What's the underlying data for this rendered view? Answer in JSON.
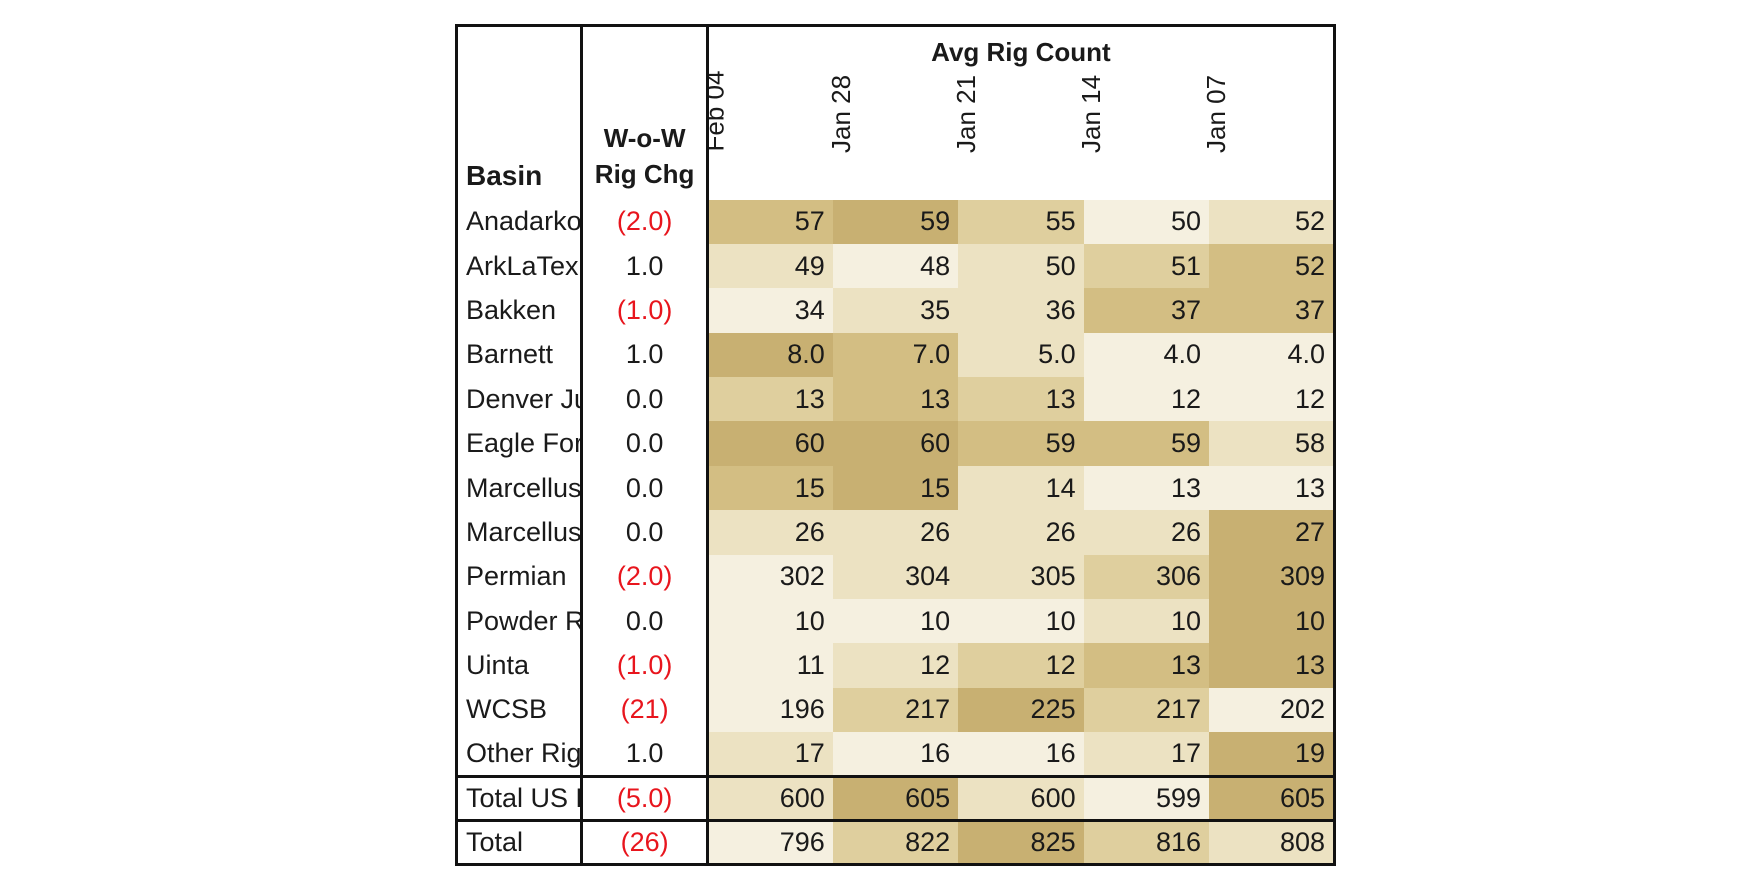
{
  "chart_data": {
    "type": "table",
    "group_header": "Avg Rig Count",
    "columns": {
      "basin": "Basin",
      "change": [
        "W-o-W",
        "Rig Chg"
      ],
      "dates": [
        "Feb 04",
        "Jan 28",
        "Jan 21",
        "Jan 14",
        "Jan 07"
      ]
    },
    "rows": [
      {
        "basin": "Anadarko",
        "change": "(2.0)",
        "negative": true,
        "values": [
          "57",
          "59",
          "55",
          "50",
          "52"
        ]
      },
      {
        "basin": "ArkLaTex",
        "change": "1.0",
        "negative": false,
        "values": [
          "49",
          "48",
          "50",
          "51",
          "52"
        ]
      },
      {
        "basin": "Bakken",
        "change": "(1.0)",
        "negative": true,
        "values": [
          "34",
          "35",
          "36",
          "37",
          "37"
        ]
      },
      {
        "basin": "Barnett",
        "change": "1.0",
        "negative": false,
        "values": [
          "8.0",
          "7.0",
          "5.0",
          "4.0",
          "4.0"
        ]
      },
      {
        "basin": "Denver Julesburg",
        "change": "0.0",
        "negative": false,
        "values": [
          "13",
          "13",
          "13",
          "12",
          "12"
        ]
      },
      {
        "basin": "Eagle Ford",
        "change": "0.0",
        "negative": false,
        "values": [
          "60",
          "60",
          "59",
          "59",
          "58"
        ]
      },
      {
        "basin": "Marcellus - NE PA",
        "change": "0.0",
        "negative": false,
        "values": [
          "15",
          "15",
          "14",
          "13",
          "13"
        ]
      },
      {
        "basin": "Marcellus+Utica",
        "change": "0.0",
        "negative": false,
        "values": [
          "26",
          "26",
          "26",
          "26",
          "27"
        ]
      },
      {
        "basin": "Permian",
        "change": "(2.0)",
        "negative": true,
        "values": [
          "302",
          "304",
          "305",
          "306",
          "309"
        ]
      },
      {
        "basin": "Powder River",
        "change": "0.0",
        "negative": false,
        "values": [
          "10",
          "10",
          "10",
          "10",
          "10"
        ]
      },
      {
        "basin": "Uinta",
        "change": "(1.0)",
        "negative": true,
        "values": [
          "11",
          "12",
          "12",
          "13",
          "13"
        ]
      },
      {
        "basin": "WCSB",
        "change": "(21)",
        "negative": true,
        "values": [
          "196",
          "217",
          "225",
          "217",
          "202"
        ]
      },
      {
        "basin": "Other Rigs",
        "change": "1.0",
        "negative": false,
        "values": [
          "17",
          "16",
          "16",
          "17",
          "19"
        ]
      }
    ],
    "totals": [
      {
        "basin": "Total US Rigs",
        "change": "(5.0)",
        "negative": true,
        "values": [
          "600",
          "605",
          "600",
          "599",
          "605"
        ]
      },
      {
        "basin": "Total",
        "change": "(26)",
        "negative": true,
        "values": [
          "796",
          "822",
          "825",
          "816",
          "808"
        ]
      }
    ],
    "heat_shades": [
      [
        3,
        4,
        2,
        0,
        1
      ],
      [
        1,
        0,
        1,
        2,
        3
      ],
      [
        0,
        1,
        1,
        3,
        3
      ],
      [
        4,
        3,
        1,
        0,
        0
      ],
      [
        2,
        3,
        2,
        0,
        0
      ],
      [
        4,
        4,
        3,
        3,
        1
      ],
      [
        3,
        4,
        1,
        0,
        0
      ],
      [
        1,
        1,
        1,
        1,
        4
      ],
      [
        0,
        1,
        1,
        2,
        4
      ],
      [
        0,
        0,
        0,
        1,
        4
      ],
      [
        0,
        1,
        2,
        3,
        4
      ],
      [
        0,
        2,
        4,
        2,
        0
      ],
      [
        1,
        0,
        0,
        1,
        4
      ],
      [
        1,
        4,
        1,
        0,
        4
      ],
      [
        0,
        2,
        4,
        2,
        1
      ]
    ],
    "colors": {
      "heat_scale": [
        "#f5f0e0",
        "#ece2c2",
        "#dfcf9e",
        "#d3be83",
        "#c8b072"
      ],
      "negative_text": "#e8151d",
      "text": "#1a1a1a",
      "border": "#111111"
    }
  }
}
